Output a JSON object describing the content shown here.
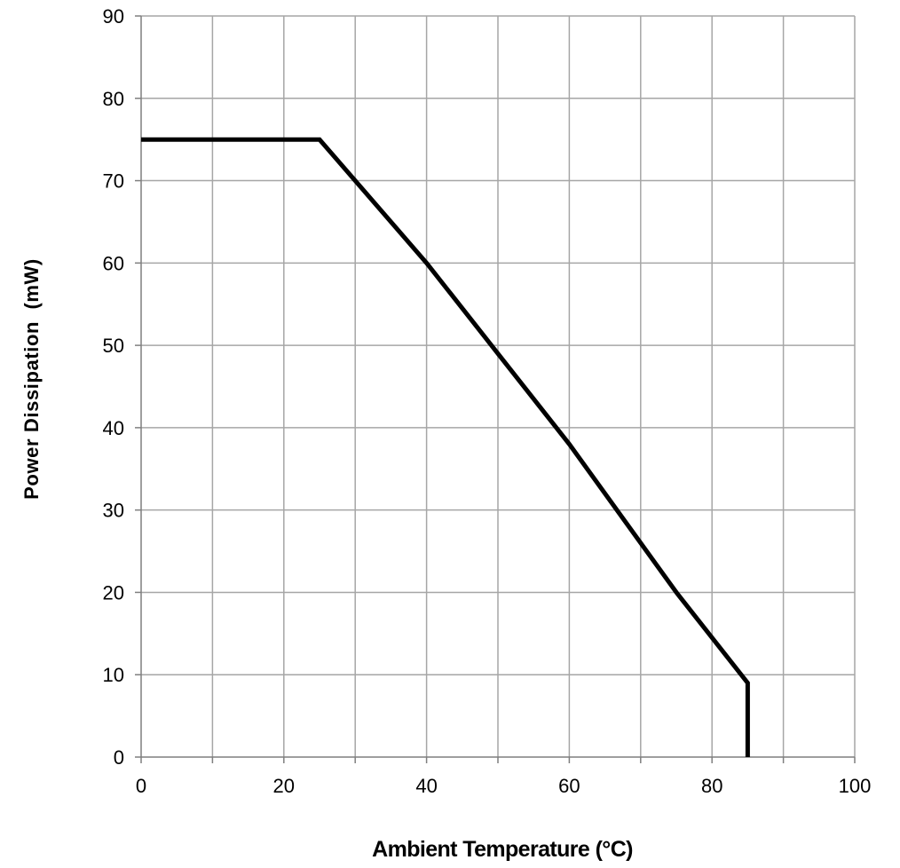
{
  "chart_data": {
    "type": "line",
    "xlabel": "Ambient Temperature (°C)",
    "ylabel": "Power Dissipation  (mW)",
    "xlim": [
      0,
      100
    ],
    "ylim": [
      0,
      90
    ],
    "xticks": [
      0,
      20,
      40,
      60,
      80,
      100
    ],
    "yticks": [
      0,
      10,
      20,
      30,
      40,
      50,
      60,
      70,
      80,
      90
    ],
    "xtick_labels": [
      "0",
      "20",
      "40",
      "60",
      "80",
      "100"
    ],
    "ytick_labels": [
      "0",
      "10",
      "20",
      "30",
      "40",
      "50",
      "60",
      "70",
      "80",
      "90"
    ],
    "grid": true,
    "grid_x_step": 10,
    "grid_y_step": 10,
    "series": [
      {
        "x": [
          0,
          25,
          40,
          50,
          60,
          75,
          85,
          85
        ],
        "y": [
          75,
          75,
          60,
          49,
          38,
          20,
          9,
          0
        ]
      }
    ],
    "colors": {
      "line": "#000000",
      "grid": "#a6a6a6",
      "axis": "#7f7f7f",
      "text": "#000000"
    }
  }
}
